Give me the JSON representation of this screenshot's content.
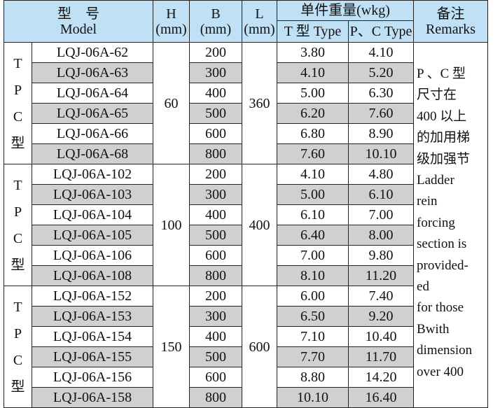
{
  "header": {
    "model_cn": "型　号",
    "model_en": "Model",
    "h": "H",
    "b": "B",
    "l": "L",
    "unit": "(mm)",
    "weight": "单件重量(wkg)",
    "t_type": "T 型 Type",
    "pc_type": "P、C Type",
    "remarks_cn": "备注",
    "remarks_en": "Remarks"
  },
  "group_label": [
    "T",
    "P",
    "C",
    "型"
  ],
  "groups": [
    {
      "h": "60",
      "l": "360",
      "rows": [
        {
          "model": "LQJ-06A-62",
          "b": "200",
          "t": "3.80",
          "pc": "4.10"
        },
        {
          "model": "LQJ-06A-63",
          "b": "300",
          "t": "4.10",
          "pc": "5.20"
        },
        {
          "model": "LQJ-06A-64",
          "b": "400",
          "t": "5.00",
          "pc": "6.30"
        },
        {
          "model": "LQJ-06A-65",
          "b": "500",
          "t": "6.20",
          "pc": "7.60"
        },
        {
          "model": "LQJ-06A-66",
          "b": "600",
          "t": "6.80",
          "pc": "8.90"
        },
        {
          "model": "LQJ-06A-68",
          "b": "800",
          "t": "7.60",
          "pc": "10.10"
        }
      ]
    },
    {
      "h": "100",
      "l": "400",
      "rows": [
        {
          "model": "LQJ-06A-102",
          "b": "200",
          "t": "4.10",
          "pc": "4.80"
        },
        {
          "model": "LQJ-06A-103",
          "b": "300",
          "t": "5.00",
          "pc": "6.10"
        },
        {
          "model": "LQJ-06A-104",
          "b": "400",
          "t": "6.10",
          "pc": "7.00"
        },
        {
          "model": "LQJ-06A-105",
          "b": "500",
          "t": "6.40",
          "pc": "8.00"
        },
        {
          "model": "LQJ-06A-106",
          "b": "600",
          "t": "7.00",
          "pc": "9.80"
        },
        {
          "model": "LQJ-06A-108",
          "b": "800",
          "t": "8.10",
          "pc": "11.20"
        }
      ]
    },
    {
      "h": "150",
      "l": "600",
      "rows": [
        {
          "model": "LQJ-06A-152",
          "b": "200",
          "t": "6.00",
          "pc": "7.40"
        },
        {
          "model": "LQJ-06A-153",
          "b": "300",
          "t": "6.50",
          "pc": "9.20"
        },
        {
          "model": "LQJ-06A-154",
          "b": "400",
          "t": "7.10",
          "pc": "10.40"
        },
        {
          "model": "LQJ-06A-155",
          "b": "500",
          "t": "7.70",
          "pc": "11.70"
        },
        {
          "model": "LQJ-06A-156",
          "b": "600",
          "t": "8.80",
          "pc": "14.20"
        },
        {
          "model": "LQJ-06A-158",
          "b": "800",
          "t": "10.10",
          "pc": "16.40"
        }
      ]
    }
  ],
  "remarks": [
    "P 、C 型",
    "尺寸在",
    "400 以上",
    "的加用梯",
    "级加强节",
    "Ladder",
    "rein",
    "forcing",
    "section is",
    "provided-",
    "ed",
    "for those",
    "Bwith",
    "dimension",
    "over 400"
  ],
  "colors": {
    "header_bg": "#bfe0f5",
    "shaded_row": "#d0d0d0"
  }
}
